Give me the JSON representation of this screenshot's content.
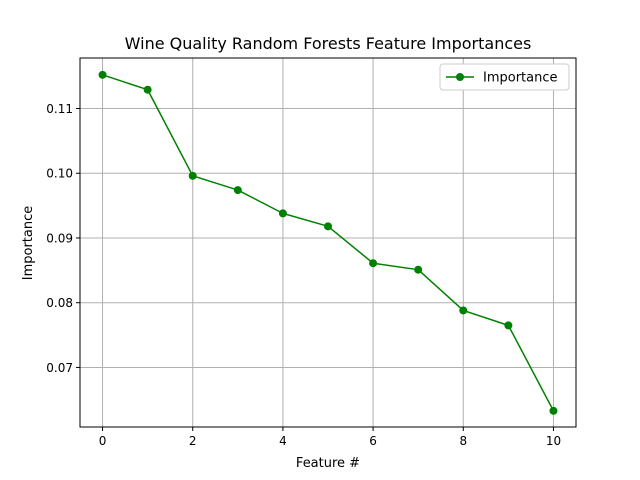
{
  "chart_data": {
    "type": "line",
    "title": "Wine Quality  Random Forests Feature Importances",
    "xlabel": "Feature #",
    "ylabel": "Importance",
    "xlim": [
      -0.5,
      10.5
    ],
    "ylim": [
      0.0608,
      0.1178
    ],
    "x_ticks": [
      "0",
      "2",
      "4",
      "6",
      "8",
      "10"
    ],
    "y_ticks": [
      "0.07",
      "0.08",
      "0.09",
      "0.10",
      "0.11"
    ],
    "grid": true,
    "legend_position": "top-right",
    "series": [
      {
        "name": "Importance",
        "color": "#008000",
        "marker": "circle",
        "x": [
          0,
          1,
          2,
          3,
          4,
          5,
          6,
          7,
          8,
          9,
          10
        ],
        "values": [
          0.1152,
          0.1129,
          0.0996,
          0.0974,
          0.0938,
          0.0918,
          0.0861,
          0.0851,
          0.0788,
          0.0765,
          0.0633
        ]
      }
    ]
  }
}
